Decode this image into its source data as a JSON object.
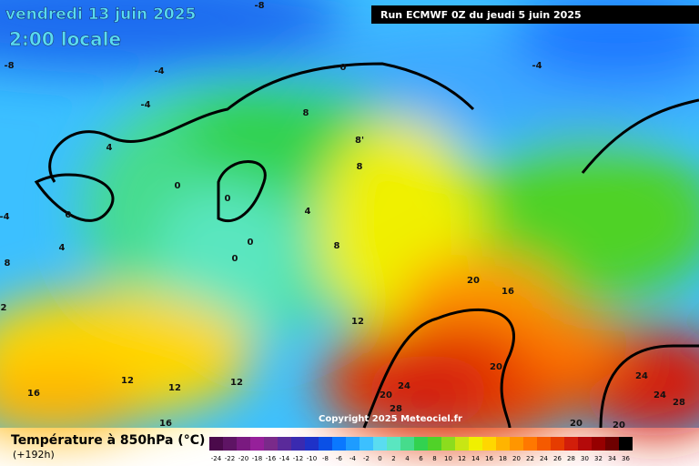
{
  "header": {
    "date": "vendredi 13 juin 2025",
    "time": "2:00 locale",
    "run": "Run ECMWF 0Z du jeudi 5 juin 2025"
  },
  "map": {
    "contour_labels": [
      "-8",
      "-8",
      "-4",
      "-4",
      "-4",
      "0",
      "4",
      "0",
      "0",
      "0",
      "4",
      "-4",
      "8",
      "0",
      "0",
      "8",
      "8'",
      "8",
      "4",
      "8",
      "20",
      "16",
      "12",
      "12",
      "12",
      "12",
      "16",
      "16",
      "20",
      "24",
      "20",
      "28",
      "20",
      "20",
      "24",
      "24",
      "28",
      "2"
    ]
  },
  "footer": {
    "title": "Température à 850hPa (°C)",
    "lead": "(+192h)",
    "copyright": "Copyright 2025 Meteociel.fr"
  },
  "legend": {
    "ticks": [
      -24,
      -22,
      -20,
      -18,
      -16,
      -14,
      -12,
      -10,
      -8,
      -6,
      -4,
      -2,
      0,
      2,
      4,
      6,
      8,
      10,
      12,
      14,
      16,
      18,
      20,
      22,
      24,
      26,
      28,
      30,
      32,
      34,
      36
    ],
    "colors": [
      "#4b0a4b",
      "#5e1464",
      "#7a1a80",
      "#96209a",
      "#7a2a8a",
      "#5a2a9a",
      "#3a2ab0",
      "#1e32c8",
      "#0a50e6",
      "#0a78ff",
      "#1e9cff",
      "#3cc0ff",
      "#5adcf0",
      "#5ae6c0",
      "#46dc8c",
      "#32d250",
      "#50d228",
      "#8cdc1e",
      "#c8e614",
      "#f0f000",
      "#ffd700",
      "#ffb400",
      "#ff9600",
      "#ff7800",
      "#f55a00",
      "#e63c00",
      "#d21e0a",
      "#b40a0a",
      "#960000",
      "#6e0000",
      "#000000"
    ]
  }
}
